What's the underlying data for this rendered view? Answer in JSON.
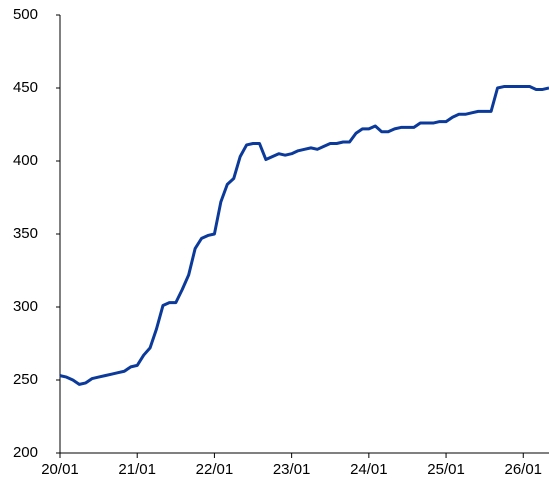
{
  "chart_data": {
    "type": "line",
    "categories": [
      "20/01",
      null,
      null,
      null,
      null,
      null,
      null,
      null,
      null,
      null,
      null,
      null,
      "21/01",
      null,
      null,
      null,
      null,
      null,
      null,
      null,
      null,
      null,
      null,
      null,
      "22/01",
      null,
      null,
      null,
      null,
      null,
      null,
      null,
      null,
      null,
      null,
      null,
      "23/01",
      null,
      null,
      null,
      null,
      null,
      null,
      null,
      null,
      null,
      null,
      null,
      "24/01",
      null,
      null,
      null,
      null,
      null,
      null,
      null,
      null,
      null,
      null,
      null,
      "25/01",
      null,
      null,
      null,
      null,
      null,
      null,
      null,
      null,
      null,
      null,
      null,
      "26/01",
      null,
      null,
      null,
      null
    ],
    "series": [
      {
        "color": "#0b3a9a",
        "values": [
          253,
          252,
          250,
          247,
          248,
          251,
          252,
          253,
          254,
          255,
          256,
          259,
          260,
          267,
          272,
          285,
          301,
          303,
          303,
          312,
          322,
          340,
          347,
          349,
          350,
          372,
          384,
          388,
          403,
          411,
          412,
          412,
          401,
          403,
          405,
          404,
          405,
          407,
          408,
          409,
          408,
          410,
          412,
          412,
          413,
          413,
          419,
          422,
          422,
          424,
          420,
          420,
          422,
          423,
          423,
          423,
          426,
          426,
          426,
          427,
          427,
          430,
          432,
          432,
          433,
          434,
          434,
          434,
          450,
          451,
          451,
          451,
          451,
          451,
          449,
          449,
          450
        ]
      }
    ],
    "ylim": [
      200,
      500
    ],
    "yticks": [
      200,
      250,
      300,
      350,
      400,
      450,
      500
    ]
  }
}
